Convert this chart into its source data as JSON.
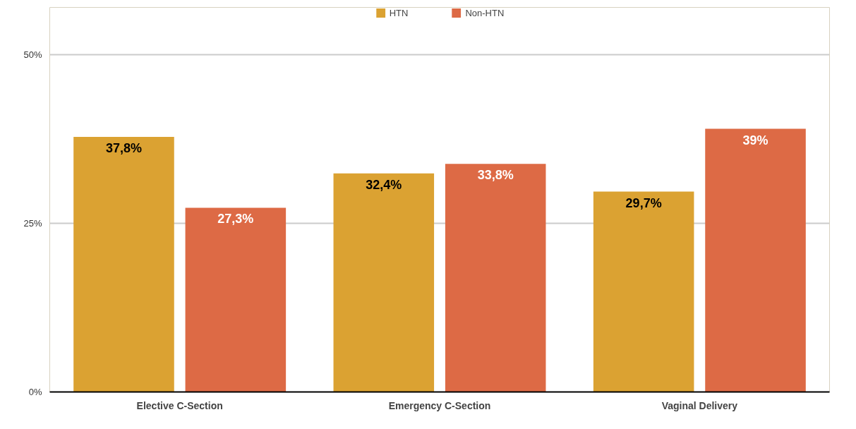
{
  "chart_data": {
    "type": "bar",
    "categories": [
      "Elective C-Section",
      "Emergency C-Section",
      "Vaginal Delivery"
    ],
    "series": [
      {
        "name": "HTN",
        "color": "#dba232",
        "values": [
          37.8,
          32.4,
          29.7
        ],
        "value_labels": [
          "37,8%",
          "32,4%",
          "29,7%"
        ]
      },
      {
        "name": "Non-HTN",
        "color": "#dd6a45",
        "values": [
          27.3,
          33.8,
          39.0
        ],
        "value_labels": [
          "27,3%",
          "33,8%",
          "39%"
        ]
      }
    ],
    "ylim": [
      0,
      57
    ],
    "yticks": [
      {
        "value": 0,
        "label": "0%"
      },
      {
        "value": 25,
        "label": "25%"
      },
      {
        "value": 50,
        "label": "50%"
      }
    ],
    "grid": "y",
    "legend": "top"
  }
}
